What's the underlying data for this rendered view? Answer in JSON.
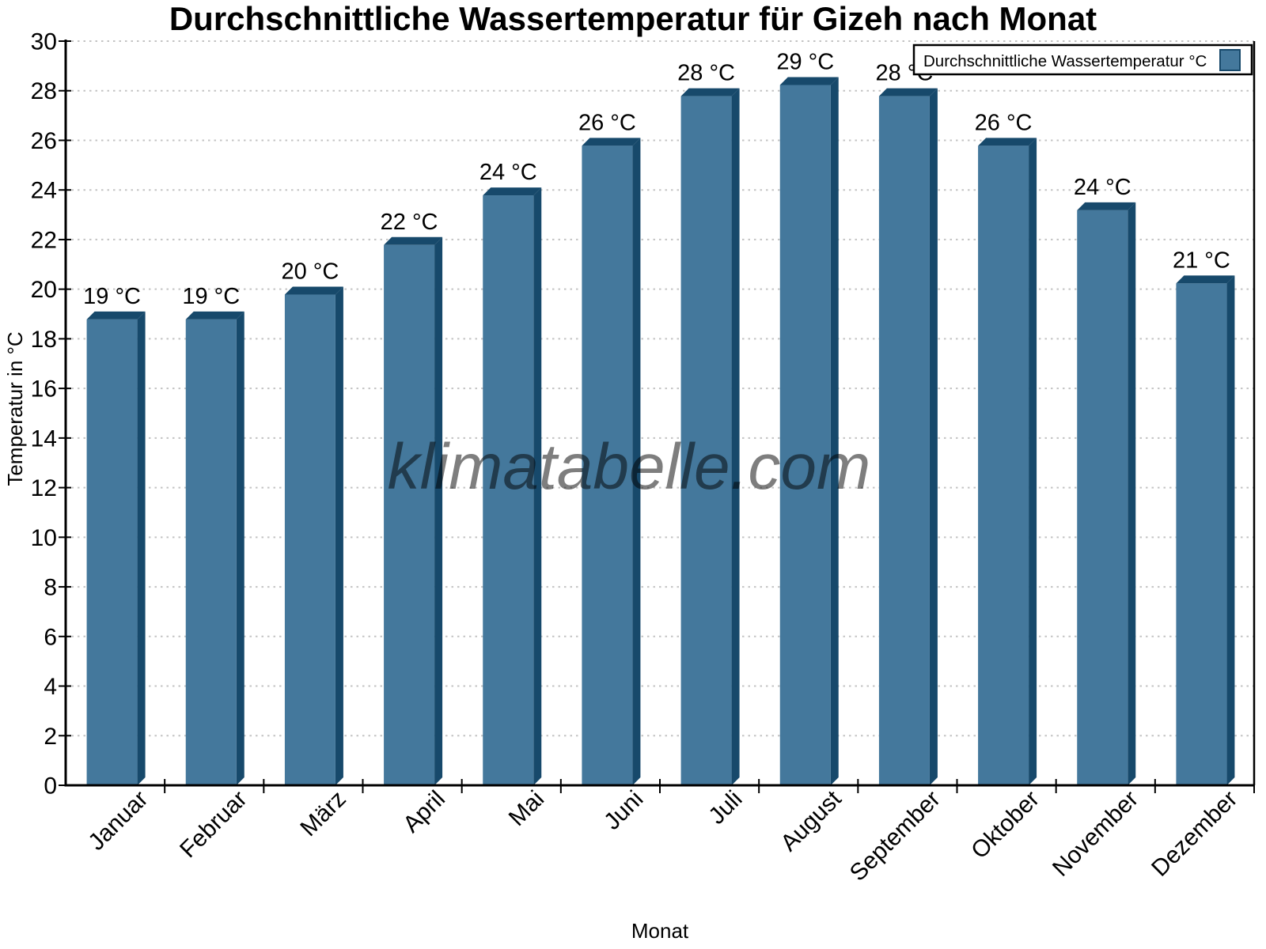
{
  "chart_data": {
    "type": "bar",
    "title": "Durchschnittliche Wassertemperatur für Gizeh nach Monat",
    "xlabel": "Monat",
    "ylabel": "Temperatur in °C",
    "watermark": "klimatabelle.com",
    "categories": [
      "Januar",
      "Februar",
      "März",
      "April",
      "Mai",
      "Juni",
      "Juli",
      "August",
      "September",
      "Oktober",
      "November",
      "Dezember"
    ],
    "series": [
      {
        "name": "Durchschnittliche Wassertemperatur °C",
        "values": [
          19,
          19,
          20,
          22,
          24,
          26,
          28,
          29,
          28,
          26,
          24,
          21
        ]
      }
    ],
    "data_labels": [
      "19 °C",
      "19 °C",
      "20 °C",
      "22 °C",
      "24 °C",
      "26 °C",
      "28 °C",
      "29 °C",
      "28 °C",
      "26 °C",
      "24 °C",
      "21 °C"
    ],
    "bar_heights_visual": [
      19.1,
      19.1,
      20.1,
      22.1,
      24.1,
      26.1,
      28.1,
      28.55,
      28.1,
      26.1,
      23.5,
      20.55
    ],
    "ylim": [
      0,
      30
    ],
    "ytick_step": 2,
    "yticks": [
      0,
      2,
      4,
      6,
      8,
      10,
      12,
      14,
      16,
      18,
      20,
      22,
      24,
      26,
      28,
      30
    ],
    "grid": "horizontal-dotted",
    "legend_position": "top-right",
    "colors": {
      "bar_front": "#44789c",
      "bar_shadow": "#17496b",
      "grid": "#c3c3c3",
      "axis": "#000000",
      "axis_title": "#5a6772",
      "data_label": "#000000",
      "watermark": "#898989"
    }
  }
}
